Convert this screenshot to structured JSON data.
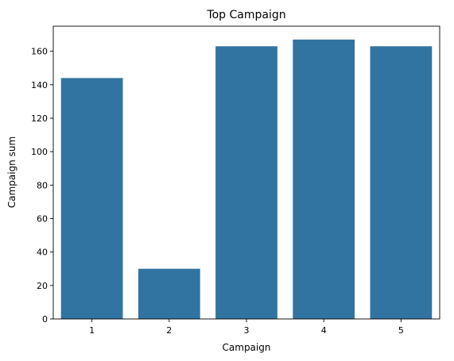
{
  "chart_data": {
    "type": "bar",
    "title": "Top Campaign",
    "xlabel": "Campaign",
    "ylabel": "Campaign sum",
    "categories": [
      "1",
      "2",
      "3",
      "4",
      "5"
    ],
    "values": [
      144,
      30,
      163,
      167,
      163
    ],
    "ylim": [
      0,
      175
    ],
    "yticks": [
      0,
      20,
      40,
      60,
      80,
      100,
      120,
      140,
      160
    ],
    "grid": false,
    "legend": "none",
    "bar_color": "#3274a1"
  }
}
